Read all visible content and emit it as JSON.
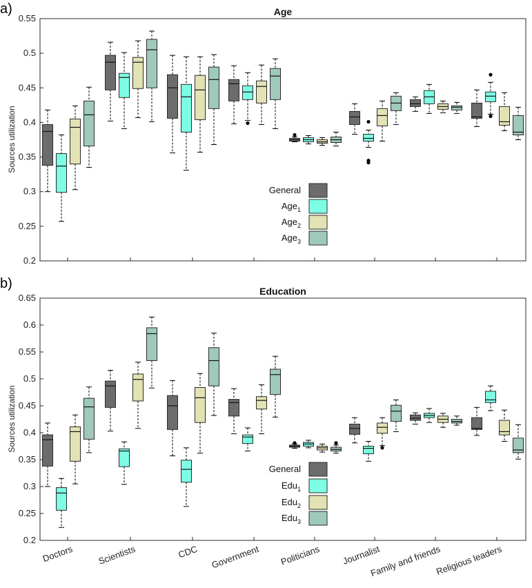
{
  "colors": {
    "General": "#6c6c6c",
    "Group1": "#7dfde4",
    "Group2": "#e2e2b4",
    "Group3": "#9fc9ba"
  },
  "chart_data": [
    {
      "type": "boxplot",
      "panel_label": "a)",
      "title": "Age",
      "ylabel": "Sources utilization",
      "xlabel": "",
      "ylim": [
        0.2,
        0.55
      ],
      "yticks": [
        "0.2",
        "0.25",
        "0.3",
        "0.35",
        "0.4",
        "0.45",
        "0.5",
        "0.55"
      ],
      "categories": [
        "Doctors",
        "Scientists",
        "CDC",
        "Government",
        "Politicians",
        "Journalist",
        "Family and friends",
        "Religious leaders"
      ],
      "legend": [
        {
          "base": "General",
          "sub": ""
        },
        {
          "base": "Age",
          "sub": "1"
        },
        {
          "base": "Age",
          "sub": "2"
        },
        {
          "base": "Age",
          "sub": "3"
        }
      ],
      "series": [
        {
          "name": "General",
          "boxes": [
            [
              0.3,
              0.338,
              0.387,
              0.397,
              0.418
            ],
            [
              0.402,
              0.447,
              0.487,
              0.497,
              0.516
            ],
            [
              0.356,
              0.406,
              0.45,
              0.469,
              0.497
            ],
            [
              0.398,
              0.431,
              0.456,
              0.462,
              0.482
            ],
            [
              0.372,
              0.373,
              0.375,
              0.377,
              0.379
            ],
            [
              0.383,
              0.397,
              0.408,
              0.416,
              0.427
            ],
            [
              0.416,
              0.423,
              0.427,
              0.433,
              0.437
            ],
            [
              0.394,
              0.406,
              0.408,
              0.428,
              0.447
            ]
          ],
          "outliers": [
            [],
            [],
            [],
            [],
            [
              0.382
            ],
            [],
            [],
            []
          ]
        },
        {
          "name": "Age1",
          "boxes": [
            [
              0.257,
              0.299,
              0.337,
              0.355,
              0.382
            ],
            [
              0.391,
              0.436,
              0.465,
              0.471,
              0.501
            ],
            [
              0.331,
              0.386,
              0.437,
              0.455,
              0.495
            ],
            [
              0.403,
              0.433,
              0.444,
              0.453,
              0.472
            ],
            [
              0.369,
              0.372,
              0.375,
              0.378,
              0.381
            ],
            [
              0.364,
              0.373,
              0.377,
              0.383,
              0.389
            ],
            [
              0.413,
              0.427,
              0.437,
              0.446,
              0.455
            ],
            [
              0.412,
              0.43,
              0.438,
              0.444,
              0.458
            ]
          ],
          "outliers": [
            [],
            [],
            [],
            [
              0.399
            ],
            [],
            [
              0.342,
              0.345,
              0.401
            ],
            [],
            [
              0.409,
              0.469
            ]
          ]
        },
        {
          "name": "Age2",
          "boxes": [
            [
              0.303,
              0.34,
              0.393,
              0.405,
              0.424
            ],
            [
              0.407,
              0.449,
              0.487,
              0.494,
              0.518
            ],
            [
              0.357,
              0.404,
              0.447,
              0.468,
              0.495
            ],
            [
              0.397,
              0.428,
              0.452,
              0.46,
              0.483
            ],
            [
              0.367,
              0.37,
              0.372,
              0.375,
              0.378
            ],
            [
              0.373,
              0.395,
              0.41,
              0.42,
              0.431
            ],
            [
              0.414,
              0.419,
              0.423,
              0.427,
              0.431
            ],
            [
              0.388,
              0.396,
              0.401,
              0.423,
              0.443
            ]
          ],
          "outliers": [
            [],
            [],
            [],
            [],
            [],
            [],
            [],
            []
          ]
        },
        {
          "name": "Age3",
          "boxes": [
            [
              0.335,
              0.366,
              0.411,
              0.431,
              0.451
            ],
            [
              0.401,
              0.45,
              0.505,
              0.52,
              0.532
            ],
            [
              0.368,
              0.42,
              0.462,
              0.48,
              0.498
            ],
            [
              0.391,
              0.433,
              0.467,
              0.478,
              0.492
            ],
            [
              0.366,
              0.371,
              0.375,
              0.379,
              0.386
            ],
            [
              0.397,
              0.417,
              0.428,
              0.438,
              0.443
            ],
            [
              0.413,
              0.418,
              0.422,
              0.424,
              0.429
            ],
            [
              0.375,
              0.382,
              0.386,
              0.41,
              0.422
            ]
          ],
          "outliers": [
            [],
            [],
            [],
            [],
            [],
            [],
            [],
            []
          ]
        }
      ]
    },
    {
      "type": "boxplot",
      "panel_label": "b)",
      "title": "Education",
      "ylabel": "Sources utilization",
      "xlabel": "",
      "ylim": [
        0.2,
        0.65
      ],
      "yticks": [
        "0.2",
        "0.25",
        "0.3",
        "0.35",
        "0.4",
        "0.45",
        "0.5",
        "0.55",
        "0.6",
        "0.65"
      ],
      "categories": [
        "Doctors",
        "Scientists",
        "CDC",
        "Government",
        "Politicians",
        "Journalist",
        "Family and friends",
        "Religious leaders"
      ],
      "legend": [
        {
          "base": "General",
          "sub": ""
        },
        {
          "base": "Edu",
          "sub": "1"
        },
        {
          "base": "Edu",
          "sub": "2"
        },
        {
          "base": "Edu",
          "sub": "3"
        }
      ],
      "series": [
        {
          "name": "General",
          "boxes": [
            [
              0.3,
              0.338,
              0.387,
              0.396,
              0.418
            ],
            [
              0.403,
              0.447,
              0.487,
              0.496,
              0.516
            ],
            [
              0.357,
              0.406,
              0.45,
              0.469,
              0.497
            ],
            [
              0.398,
              0.431,
              0.456,
              0.462,
              0.482
            ],
            [
              0.371,
              0.373,
              0.375,
              0.377,
              0.379
            ],
            [
              0.381,
              0.397,
              0.408,
              0.416,
              0.428
            ],
            [
              0.416,
              0.423,
              0.427,
              0.433,
              0.437
            ],
            [
              0.395,
              0.406,
              0.408,
              0.428,
              0.447
            ]
          ],
          "outliers": [
            [],
            [],
            [],
            [],
            [
              0.381
            ],
            [],
            [],
            []
          ]
        },
        {
          "name": "Edu1",
          "boxes": [
            [
              0.224,
              0.256,
              0.288,
              0.298,
              0.315
            ],
            [
              0.304,
              0.337,
              0.366,
              0.37,
              0.383
            ],
            [
              0.263,
              0.308,
              0.332,
              0.349,
              0.372
            ],
            [
              0.366,
              0.38,
              0.392,
              0.396,
              0.409
            ],
            [
              0.372,
              0.375,
              0.379,
              0.382,
              0.386
            ],
            [
              0.347,
              0.361,
              0.371,
              0.375,
              0.384
            ],
            [
              0.419,
              0.428,
              0.432,
              0.436,
              0.445
            ],
            [
              0.441,
              0.456,
              0.461,
              0.477,
              0.487
            ]
          ],
          "outliers": [
            [],
            [],
            [],
            [],
            [],
            [],
            [],
            []
          ]
        },
        {
          "name": "Edu2",
          "boxes": [
            [
              0.305,
              0.347,
              0.402,
              0.411,
              0.433
            ],
            [
              0.408,
              0.459,
              0.499,
              0.509,
              0.531
            ],
            [
              0.362,
              0.419,
              0.465,
              0.484,
              0.51
            ],
            [
              0.398,
              0.444,
              0.46,
              0.467,
              0.489
            ],
            [
              0.364,
              0.368,
              0.372,
              0.375,
              0.379
            ],
            [
              0.376,
              0.399,
              0.41,
              0.418,
              0.428
            ],
            [
              0.41,
              0.419,
              0.425,
              0.431,
              0.436
            ],
            [
              0.384,
              0.396,
              0.402,
              0.423,
              0.442
            ]
          ],
          "outliers": [
            [],
            [],
            [],
            [],
            [],
            [
              0.372
            ],
            [],
            []
          ]
        },
        {
          "name": "Edu3",
          "boxes": [
            [
              0.363,
              0.388,
              0.448,
              0.464,
              0.485
            ],
            [
              0.483,
              0.534,
              0.584,
              0.595,
              0.615
            ],
            [
              0.432,
              0.487,
              0.534,
              0.558,
              0.585
            ],
            [
              0.429,
              0.471,
              0.508,
              0.518,
              0.542
            ],
            [
              0.362,
              0.366,
              0.369,
              0.373,
              0.377
            ],
            [
              0.402,
              0.421,
              0.44,
              0.451,
              0.461
            ],
            [
              0.414,
              0.418,
              0.421,
              0.425,
              0.431
            ],
            [
              0.351,
              0.363,
              0.368,
              0.39,
              0.415
            ]
          ],
          "outliers": [
            [],
            [],
            [],
            [],
            [
              0.381
            ],
            [],
            [],
            []
          ]
        }
      ]
    }
  ]
}
